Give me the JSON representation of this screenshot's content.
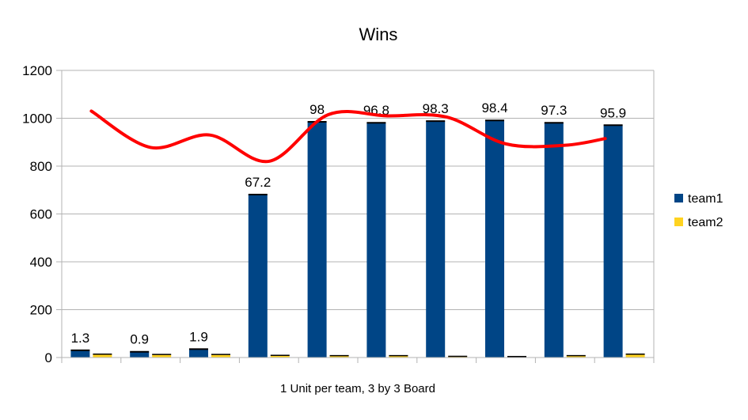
{
  "chart_data": {
    "type": "bar",
    "title": "Wins",
    "xlabel": "1 Unit per team, 3 by 3 Board",
    "ylabel": "",
    "ylim": [
      0,
      1200
    ],
    "yticks": [
      "0",
      "200",
      "400",
      "600",
      "800",
      "1000",
      "1200"
    ],
    "grid": true,
    "legend_position": "right",
    "categories": [
      "",
      "",
      "",
      "",
      "",
      "",
      "",
      "",
      "",
      ""
    ],
    "series": [
      {
        "name": "team1",
        "color": "#004586",
        "values": [
          30,
          24,
          35,
          681,
          985,
          981,
          988,
          991,
          981,
          971
        ],
        "data_labels": [
          "1.3",
          "0.9",
          "1.9",
          "67.2",
          "98",
          "96.8",
          "98.3",
          "98.4",
          "97.3",
          "95.9"
        ]
      },
      {
        "name": "team2",
        "color": "#ffd320",
        "values": [
          14,
          13,
          13,
          9,
          8,
          8,
          5,
          4,
          8,
          14
        ]
      }
    ],
    "trend_line": {
      "color": "#ff0000",
      "values": [
        1030,
        878,
        930,
        820,
        1015,
        1010,
        1005,
        893,
        887,
        915
      ]
    }
  }
}
